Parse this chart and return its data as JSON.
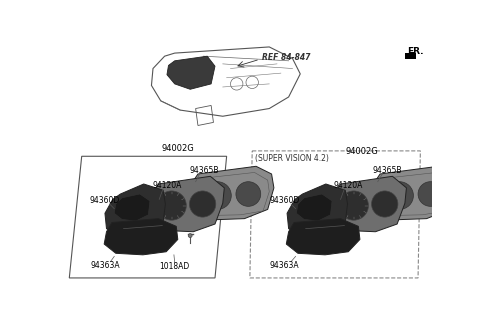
{
  "background_color": "#ffffff",
  "fr_label": "FR.",
  "ref_label": "REF 84-847",
  "super_vision_label": "(SUPER VISION 4.2)",
  "left_group_label": "94002G",
  "right_group_label": "94002G",
  "left_parts": [
    "94365B",
    "94120A",
    "94360D",
    "94363A",
    "1018AD"
  ],
  "right_parts": [
    "94365B",
    "94120A",
    "94360D",
    "94363A"
  ],
  "text_color": "#000000",
  "part_dark": "#3a3a3a",
  "part_mid": "#5a5a5a",
  "part_light": "#8a8a8a",
  "part_back": "#7a7a7a",
  "edge_color": "#222222",
  "box_solid_color": "#555555",
  "box_dashed_color": "#888888",
  "line_color": "#555555"
}
